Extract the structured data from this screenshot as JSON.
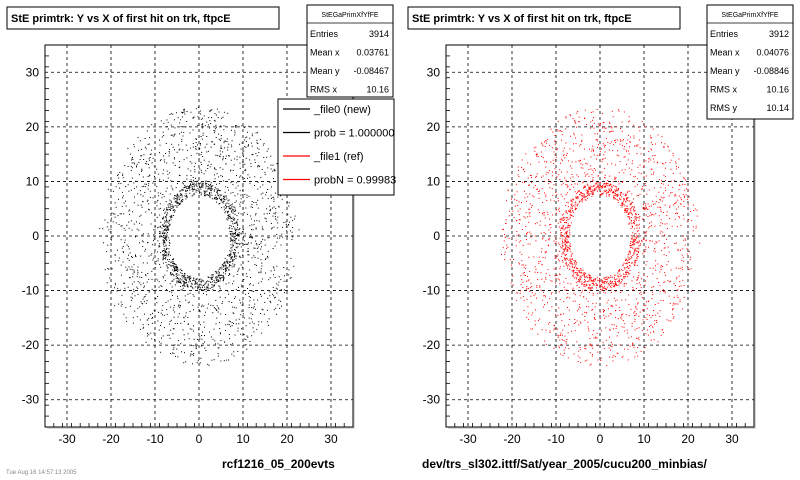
{
  "chart_data": [
    {
      "type": "scatter",
      "title": "StE primtrk: Y vs X of first hit on trk, ftpcE",
      "color": "#000000",
      "xlim": [
        -35,
        35
      ],
      "ylim": [
        -35,
        35
      ],
      "x_ticks": [
        "-30",
        "-20",
        "-10",
        "0",
        "10",
        "20",
        "30"
      ],
      "y_ticks": [
        "30",
        "20",
        "10",
        "0",
        "-10",
        "-20",
        "-30"
      ],
      "grid": true,
      "distribution": {
        "shape": "annulus",
        "center": [
          0,
          0
        ],
        "inner_radius": 7,
        "outer_radius": 22,
        "points": 3914
      },
      "stats": {
        "name": "StEGaPrimXfYfFE",
        "rows": [
          {
            "label": "Entries",
            "value": "3914"
          },
          {
            "label": "Mean x",
            "value": "0.03761"
          },
          {
            "label": "Mean y",
            "value": "-0.08467"
          },
          {
            "label": "RMS x",
            "value": "10.16"
          }
        ]
      },
      "footer": "rcf1216_05_200evts",
      "footer_left": "Tue Aug 16 14:57:13 2005"
    },
    {
      "type": "scatter",
      "title": "StE primtrk: Y vs X of first hit on trk, ftpcE",
      "color": "#ff0000",
      "xlim": [
        -35,
        35
      ],
      "ylim": [
        -35,
        35
      ],
      "x_ticks": [
        "-30",
        "-20",
        "-10",
        "0",
        "10",
        "20",
        "30"
      ],
      "y_ticks": [
        "30",
        "20",
        "10",
        "0",
        "-10",
        "-20",
        "-30"
      ],
      "grid": true,
      "distribution": {
        "shape": "annulus",
        "center": [
          0,
          0
        ],
        "inner_radius": 7,
        "outer_radius": 22,
        "points": 3912
      },
      "stats": {
        "name": "StEGaPrimXfYfFE",
        "rows": [
          {
            "label": "Entries",
            "value": "3912"
          },
          {
            "label": "Mean x",
            "value": "0.04076"
          },
          {
            "label": "Mean y",
            "value": "-0.08846"
          },
          {
            "label": "RMS x",
            "value": "10.16"
          },
          {
            "label": "RMS y",
            "value": "10.14"
          }
        ]
      },
      "footer": "dev/trs_sl302.ittf/Sat/year_2005/cucu200_minbias/"
    }
  ],
  "legend": {
    "placement": "top-right of left panel",
    "entries": [
      {
        "label": "_file0 (new)",
        "color": "#000000"
      },
      {
        "label": "prob = 1.000000",
        "color": "#000000"
      },
      {
        "label": "_file1 (ref)",
        "color": "#ff0000"
      },
      {
        "label": "probN = 0.99983",
        "color": "#ff0000"
      }
    ]
  }
}
